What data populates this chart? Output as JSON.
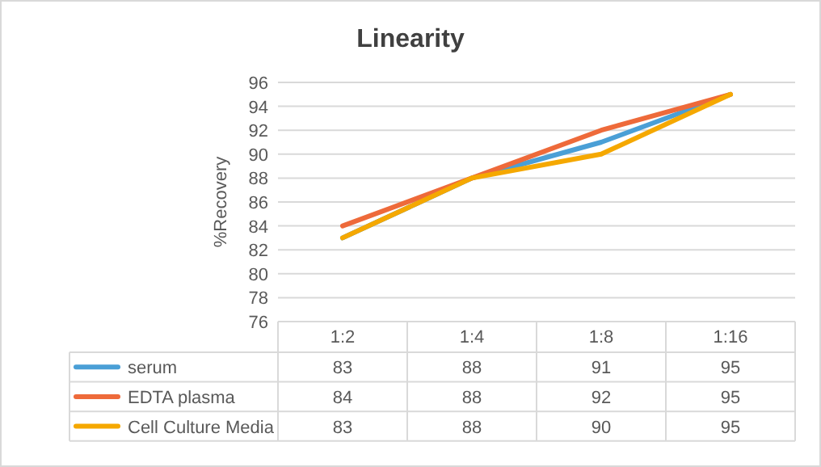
{
  "chart_data": {
    "type": "line",
    "title": "Linearity",
    "ylabel": "%Recovery",
    "categories": [
      "1:2",
      "1:4",
      "1:8",
      "1:16"
    ],
    "series": [
      {
        "name": "serum",
        "color": "#4a9fd6",
        "values": [
          83,
          88,
          91,
          95
        ]
      },
      {
        "name": "EDTA plasma",
        "color": "#ee6a3a",
        "values": [
          84,
          88,
          92,
          95
        ]
      },
      {
        "name": "Cell Culture Media",
        "color": "#f5a800",
        "values": [
          83,
          88,
          90,
          95
        ]
      }
    ],
    "ylim": [
      76,
      96
    ],
    "yticks": [
      76,
      78,
      80,
      82,
      84,
      86,
      88,
      90,
      92,
      94,
      96
    ],
    "grid": "y",
    "legend": "bottom",
    "data_labels": true,
    "marker": "none",
    "line_style": "solid"
  }
}
